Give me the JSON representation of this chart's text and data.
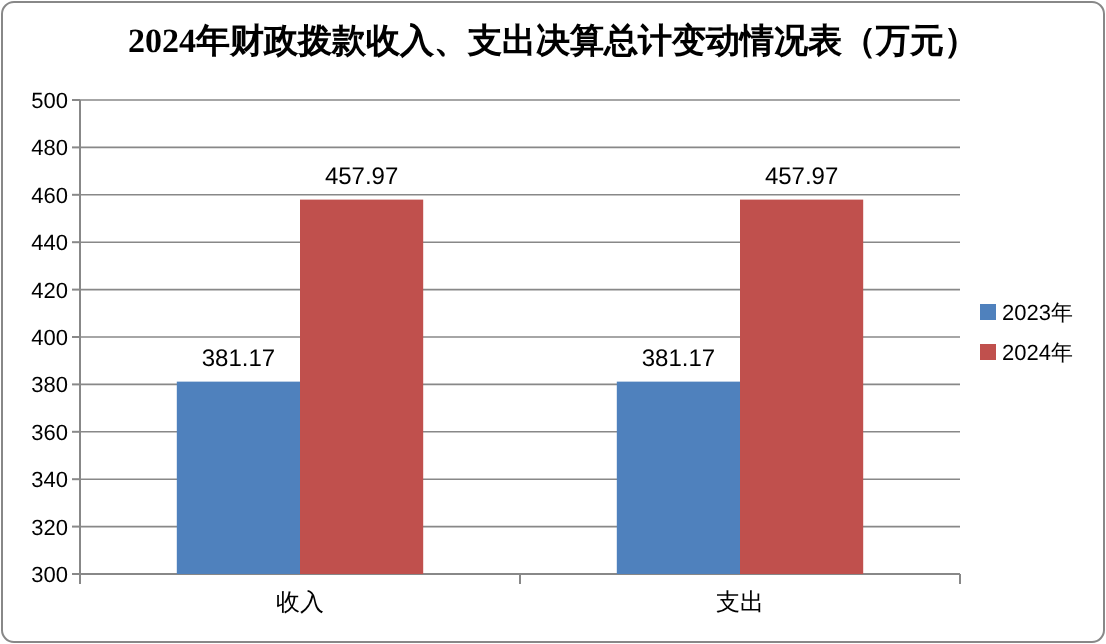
{
  "chart_data": {
    "type": "bar",
    "title": "2024年财政拨款收入、支出决算总计变动情况表（万元）",
    "categories": [
      "收入",
      "支出"
    ],
    "series": [
      {
        "name": "2023年",
        "color": "#4f81bd",
        "values": [
          381.17,
          381.17
        ]
      },
      {
        "name": "2024年",
        "color": "#c0504d",
        "values": [
          457.97,
          457.97
        ]
      }
    ],
    "ylim": [
      300,
      500
    ],
    "yticks": [
      300,
      320,
      340,
      360,
      380,
      400,
      420,
      440,
      460,
      480,
      500
    ],
    "grid": "y",
    "legend": "right",
    "data_labels": true
  }
}
